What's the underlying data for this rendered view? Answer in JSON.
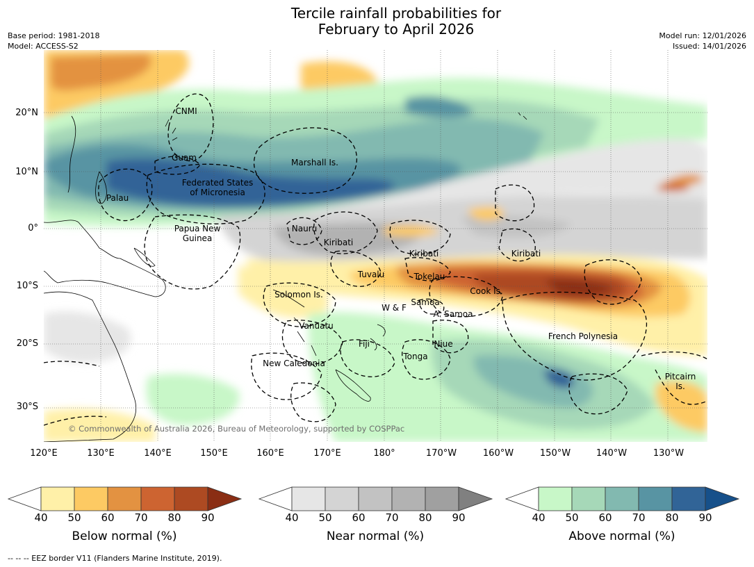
{
  "title": {
    "line1": "Tercile rainfall probabilities for",
    "line2": "February to April 2026"
  },
  "meta": {
    "base_period": "Base period: 1981-2018",
    "model": "Model: ACCESS-S2",
    "model_run": "Model run: 12/01/2026",
    "issued": "Issued: 14/01/2026"
  },
  "axes": {
    "lat_ticks": [
      "20°N",
      "10°N",
      "0°",
      "10°S",
      "20°S",
      "30°S"
    ],
    "lon_ticks": [
      "120°E",
      "130°E",
      "140°E",
      "150°E",
      "160°E",
      "170°E",
      "180°",
      "170°W",
      "160°W",
      "150°W",
      "140°W",
      "130°W"
    ]
  },
  "regions": [
    "CNMI",
    "Guam",
    "Marshall Is.",
    "Federated States\nof Micronesia",
    "Palau",
    "Papua New\nGuinea",
    "Nauru",
    "Kiribati",
    "Kiribati",
    "Kiribati",
    "Tuvalu",
    "Tokelau",
    "Cook Is.",
    "Solomon Is.",
    "Samoa",
    "W & F",
    "A. Samoa",
    "Vanuatu",
    "Fiji",
    "Niue",
    "Tonga",
    "French Polynesia",
    "New Caledonia",
    "Pitcairn\nIs."
  ],
  "copyright": "© Commonwealth of Australia 2026, Bureau of Meteorology, supported by COSPPac",
  "colorbars": [
    {
      "title": "Below normal (%)",
      "ticks": [
        "40",
        "50",
        "60",
        "70",
        "80",
        "90"
      ],
      "colors": [
        "#fff0a8",
        "#fdca63",
        "#e39241",
        "#cd6431",
        "#ad4a22",
        "#8a2e14"
      ]
    },
    {
      "title": "Near normal (%)",
      "ticks": [
        "40",
        "50",
        "60",
        "70",
        "80",
        "90"
      ],
      "colors": [
        "#e6e6e6",
        "#d4d4d4",
        "#c2c2c2",
        "#b2b2b2",
        "#a0a0a0",
        "#808080"
      ]
    },
    {
      "title": "Above normal (%)",
      "ticks": [
        "40",
        "50",
        "60",
        "70",
        "80",
        "90"
      ],
      "colors": [
        "#c8f7c8",
        "#a6d8b8",
        "#82b9b0",
        "#5894a3",
        "#316497",
        "#16508a"
      ]
    }
  ],
  "footnote": "--  --  -- EEZ border V11 (Flanders Marine Institute, 2019)."
}
